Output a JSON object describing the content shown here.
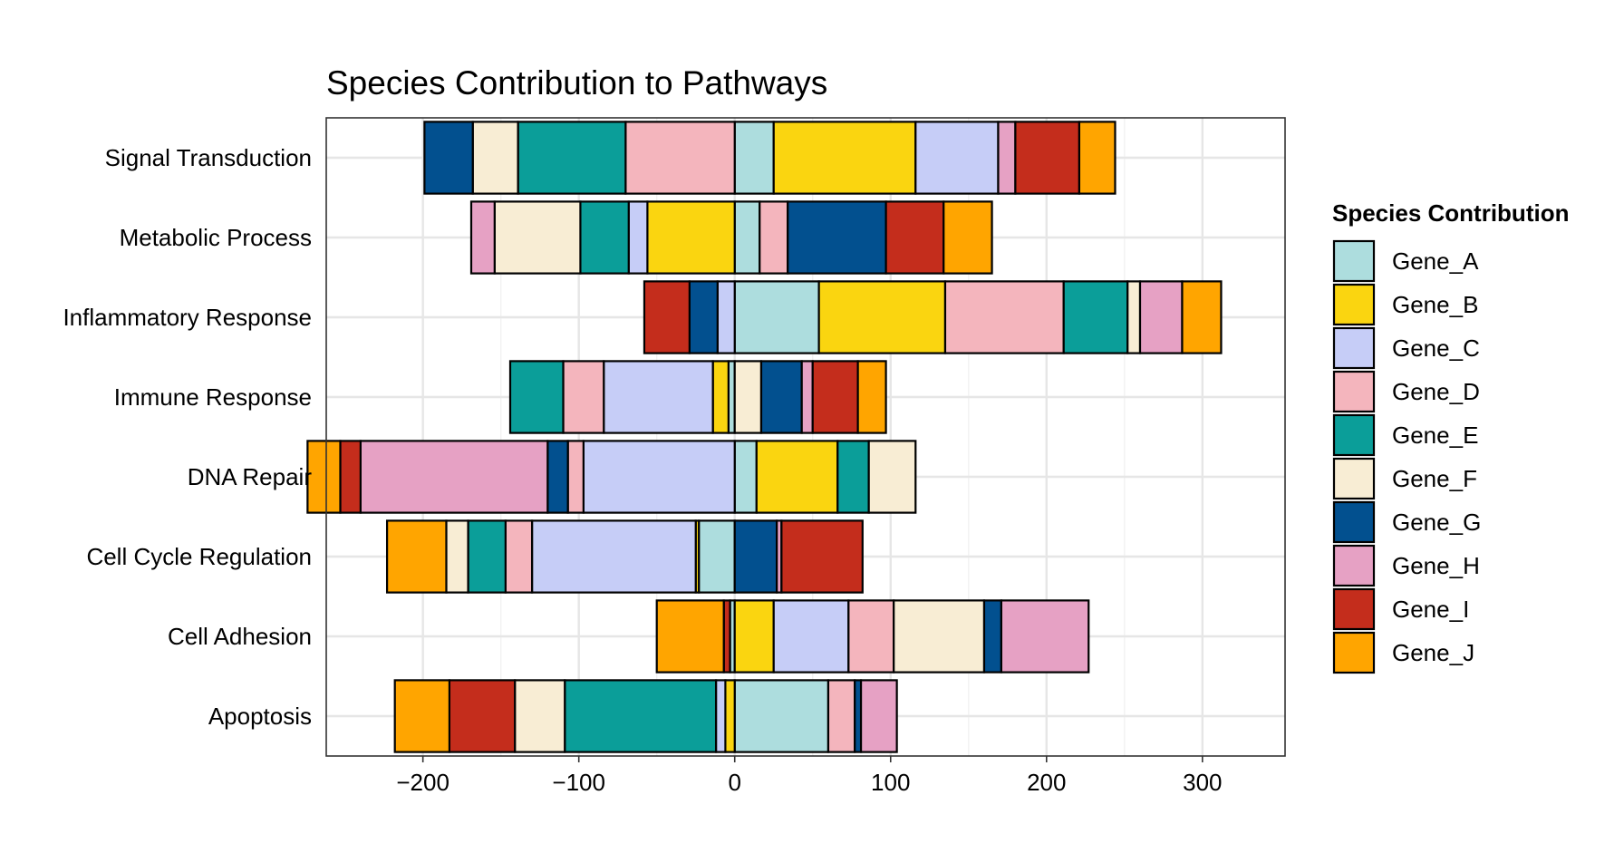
{
  "chart_data": {
    "type": "bar",
    "orientation": "horizontal",
    "stacked": "diverging",
    "title": "Species Contribution to Pathways",
    "xlabel": "",
    "ylabel": "",
    "xlim": [
      -262,
      353
    ],
    "xticks": [
      -200,
      -100,
      0,
      100,
      200,
      300
    ],
    "xtick_labels": [
      "−200",
      "−100",
      "0",
      "100",
      "200",
      "300"
    ],
    "grid": true,
    "legend_position": "right",
    "legend_title": "Species Contribution",
    "categories": [
      "Signal Transduction",
      "Metabolic Process",
      "Inflammatory Response",
      "Immune Response",
      "DNA Repair",
      "Cell Cycle Regulation",
      "Cell Adhesion",
      "Apoptosis"
    ],
    "series": [
      {
        "name": "Gene_A",
        "color": "#ADDDDE",
        "values": [
          25,
          16,
          54,
          -4,
          14,
          -23,
          -3,
          60
        ]
      },
      {
        "name": "Gene_B",
        "color": "#FAD510",
        "values": [
          91,
          -56,
          81,
          -10,
          52,
          -2,
          25,
          -6
        ]
      },
      {
        "name": "Gene_C",
        "color": "#C6CDF7",
        "values": [
          53,
          -12,
          -11,
          -70,
          -97,
          -105,
          48,
          -6
        ]
      },
      {
        "name": "Gene_D",
        "color": "#F4B5BD",
        "values": [
          -70,
          18,
          76,
          -26,
          -10,
          -17,
          29,
          17
        ]
      },
      {
        "name": "Gene_E",
        "color": "#0B9E99",
        "values": [
          -69,
          -31,
          41,
          -34,
          20,
          -24,
          0,
          -97
        ]
      },
      {
        "name": "Gene_F",
        "color": "#F8EDD4",
        "values": [
          -29,
          -55,
          8,
          17,
          30,
          -14,
          58,
          -32
        ]
      },
      {
        "name": "Gene_G",
        "color": "#02508F",
        "values": [
          -31,
          63,
          -18,
          26,
          -13,
          27,
          11,
          4
        ]
      },
      {
        "name": "Gene_H",
        "color": "#E6A1C4",
        "values": [
          11,
          -15,
          27,
          7,
          -120,
          3,
          56,
          23
        ]
      },
      {
        "name": "Gene_I",
        "color": "#C42D1C",
        "values": [
          41,
          37,
          -29,
          29,
          -13,
          52,
          -4,
          -42
        ]
      },
      {
        "name": "Gene_J",
        "color": "#FFA500",
        "values": [
          23,
          31,
          25,
          18,
          -21,
          -38,
          -43,
          -35
        ]
      }
    ]
  }
}
